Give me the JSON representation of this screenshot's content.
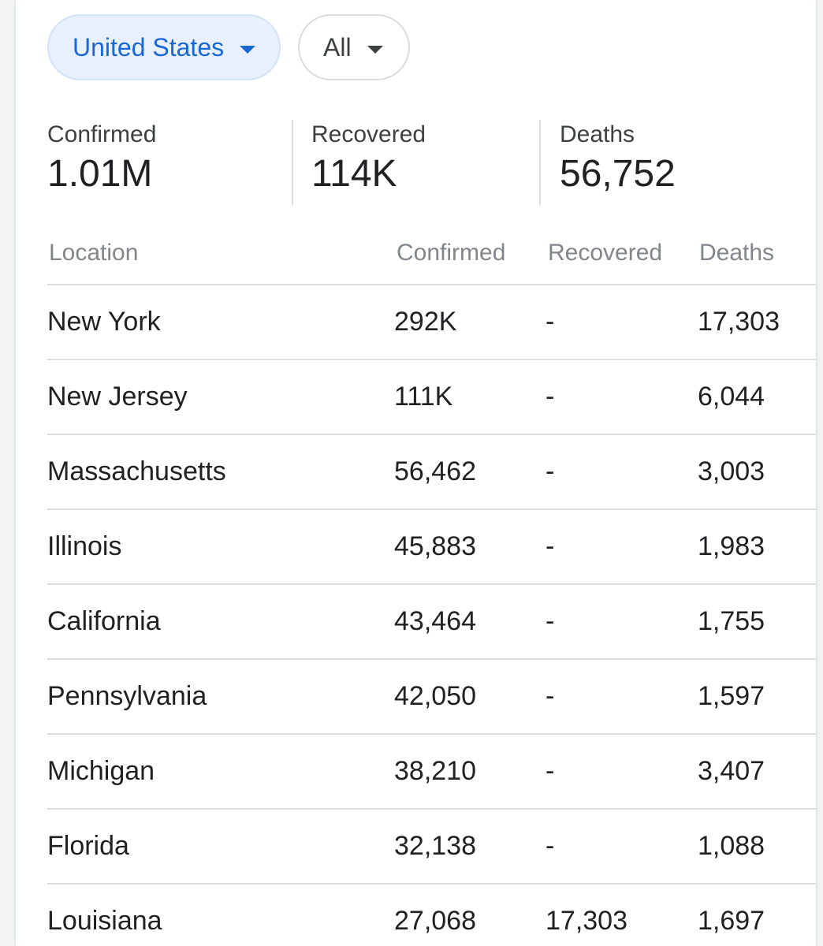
{
  "filters": {
    "country": "United States",
    "scope": "All"
  },
  "colors": {
    "accent": "#1967d2",
    "chip_selected_bg": "#e8f0fe",
    "divider": "#dadce0"
  },
  "summary": {
    "confirmed": {
      "label": "Confirmed",
      "value": "1.01M"
    },
    "recovered": {
      "label": "Recovered",
      "value": "114K"
    },
    "deaths": {
      "label": "Deaths",
      "value": "56,752"
    }
  },
  "table": {
    "headers": {
      "location": "Location",
      "confirmed": "Confirmed",
      "recovered": "Recovered",
      "deaths": "Deaths"
    },
    "rows": [
      {
        "location": "New York",
        "confirmed": "292K",
        "recovered": "-",
        "deaths": "17,303"
      },
      {
        "location": "New Jersey",
        "confirmed": "111K",
        "recovered": "-",
        "deaths": "6,044"
      },
      {
        "location": "Massachusetts",
        "confirmed": "56,462",
        "recovered": "-",
        "deaths": "3,003"
      },
      {
        "location": "Illinois",
        "confirmed": "45,883",
        "recovered": "-",
        "deaths": "1,983"
      },
      {
        "location": "California",
        "confirmed": "43,464",
        "recovered": "-",
        "deaths": "1,755"
      },
      {
        "location": "Pennsylvania",
        "confirmed": "42,050",
        "recovered": "-",
        "deaths": "1,597"
      },
      {
        "location": "Michigan",
        "confirmed": "38,210",
        "recovered": "-",
        "deaths": "3,407"
      },
      {
        "location": "Florida",
        "confirmed": "32,138",
        "recovered": "-",
        "deaths": "1,088"
      },
      {
        "location": "Louisiana",
        "confirmed": "27,068",
        "recovered": "17,303",
        "deaths": "1,697"
      }
    ]
  }
}
